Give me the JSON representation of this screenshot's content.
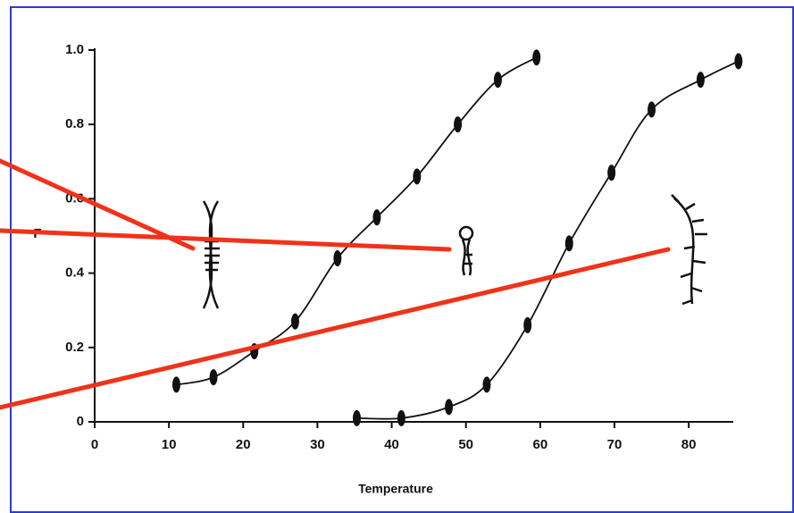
{
  "chart_data": {
    "type": "scatter",
    "x_label": "Temperature",
    "y_label": "F",
    "xlim": [
      0,
      86
    ],
    "ylim": [
      0,
      1
    ],
    "xticks": [
      0,
      10,
      20,
      30,
      40,
      50,
      60,
      70,
      80
    ],
    "yticks": [
      0,
      0.2,
      0.4,
      0.6,
      0.8,
      {
        "value": 1,
        "label": "1.0"
      }
    ],
    "series": [
      {
        "color": "#111111",
        "x": [
          11,
          16,
          21.5,
          27,
          32.7,
          38,
          43.4,
          48.9,
          54.3,
          59.5
        ],
        "values": [
          0.1,
          0.12,
          0.19,
          0.27,
          0.44,
          0.55,
          0.66,
          0.8,
          0.92,
          0.98
        ]
      },
      {
        "color": "#111111",
        "x": [
          35.3,
          41.3,
          47.7,
          52.8,
          58.3,
          63.9,
          69.6,
          75,
          81.6,
          86.7
        ],
        "values": [
          0.01,
          0.01,
          0.04,
          0.1,
          0.26,
          0.48,
          0.67,
          0.84,
          0.92,
          0.97
        ]
      }
    ]
  }
}
